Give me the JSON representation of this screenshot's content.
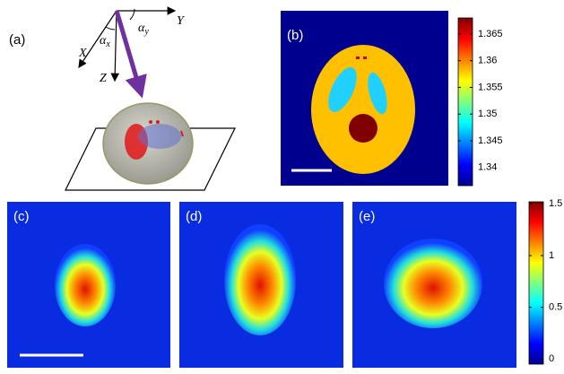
{
  "panels": [
    {
      "label": "(a)"
    },
    {
      "label": "(b)"
    },
    {
      "label": "(c)"
    },
    {
      "label": "(d)"
    },
    {
      "label": "(e)"
    }
  ],
  "diagram": {
    "axes": [
      "X",
      "Y",
      "Z"
    ],
    "angles": [
      {
        "base": "α",
        "sub": "x"
      },
      {
        "base": "α",
        "sub": "y"
      }
    ]
  },
  "colorbars": [
    {
      "lim": [
        1.3366,
        1.368
      ],
      "ticks": [
        1.34,
        1.345,
        1.35,
        1.355,
        1.36,
        1.365
      ]
    },
    {
      "lim": [
        -0.05,
        1.52
      ],
      "ticks": [
        0,
        0.5,
        1,
        1.5
      ]
    }
  ]
}
